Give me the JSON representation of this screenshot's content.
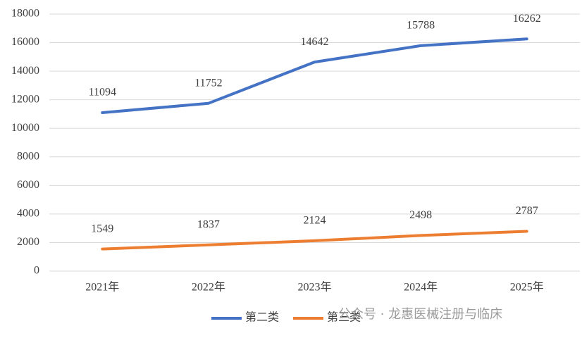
{
  "chart_data": {
    "type": "line",
    "categories": [
      "2021年",
      "2022年",
      "2023年",
      "2024年",
      "2025年"
    ],
    "series": [
      {
        "name": "第二类",
        "color": "#4472c4",
        "values": [
          11094,
          11752,
          14642,
          15788,
          16262
        ]
      },
      {
        "name": "第三类",
        "color": "#ed7d31",
        "values": [
          1549,
          1837,
          2124,
          2498,
          2787
        ]
      }
    ],
    "ylim": [
      0,
      18000
    ],
    "yticks": [
      0,
      2000,
      4000,
      6000,
      8000,
      10000,
      12000,
      14000,
      16000,
      18000
    ],
    "grid": true,
    "legend": "bottom",
    "watermark": "公众号 · 龙惠医械注册与临床"
  }
}
